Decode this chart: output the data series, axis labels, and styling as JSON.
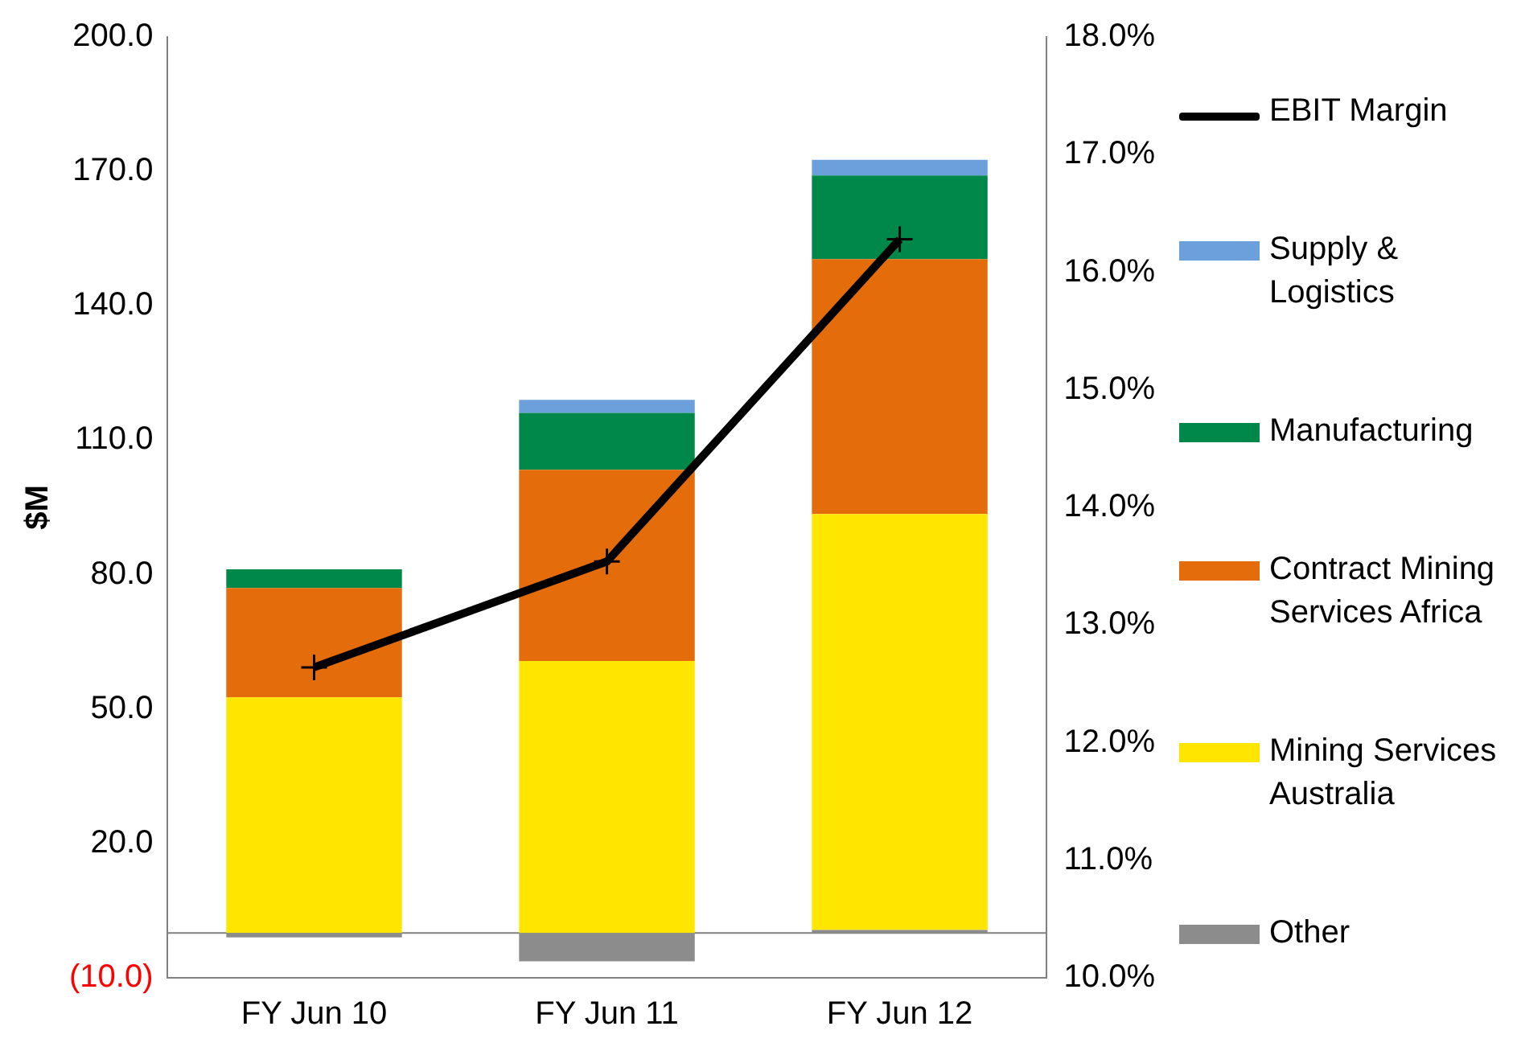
{
  "chart_data": {
    "type": "bar",
    "stacked": true,
    "categories": [
      "FY Jun 10",
      "FY Jun 11",
      "FY Jun 12"
    ],
    "ylabel": "$M",
    "ylim": [
      -10,
      200
    ],
    "yticks": [
      {
        "value": -10,
        "label": "(10.0)"
      },
      {
        "value": 20,
        "label": "20.0"
      },
      {
        "value": 50,
        "label": "50.0"
      },
      {
        "value": 80,
        "label": "80.0"
      },
      {
        "value": 110,
        "label": "110.0"
      },
      {
        "value": 140,
        "label": "140.0"
      },
      {
        "value": 170,
        "label": "170.0"
      },
      {
        "value": 200,
        "label": "200.0"
      }
    ],
    "y2lim": [
      10,
      18
    ],
    "y2ticks": [
      {
        "value": 10,
        "label": "10.0%"
      },
      {
        "value": 11,
        "label": "11.0%"
      },
      {
        "value": 12,
        "label": "12.0%"
      },
      {
        "value": 13,
        "label": "13.0%"
      },
      {
        "value": 14,
        "label": "14.0%"
      },
      {
        "value": 15,
        "label": "15.0%"
      },
      {
        "value": 16,
        "label": "16.0%"
      },
      {
        "value": 17,
        "label": "17.0%"
      },
      {
        "value": 18,
        "label": "18.0%"
      }
    ],
    "series": [
      {
        "name": "Other",
        "color": "#8c8c8c",
        "values": [
          -1,
          -6.3,
          0.7
        ]
      },
      {
        "name": "Mining Services Australia",
        "color": "#ffe600",
        "values": [
          52.6,
          60.7,
          92.8
        ]
      },
      {
        "name": "Contract Mining Services Africa",
        "color": "#e46c0a",
        "values": [
          24.4,
          42.7,
          56.9
        ]
      },
      {
        "name": "Manufacturing",
        "color": "#00884a",
        "values": [
          4.2,
          12.7,
          18.7
        ]
      },
      {
        "name": "Supply & Logistics",
        "color": "#6ca0dc",
        "values": [
          0,
          2.9,
          3.5
        ]
      },
      {
        "name": "EBIT Margin",
        "type": "line",
        "axis": "y2",
        "color": "#000000",
        "marker": "cross",
        "line_style": "solid",
        "values": [
          12.64,
          13.54,
          16.28
        ]
      }
    ],
    "ref_lines": [
      {
        "axis": "y",
        "value": 0,
        "color": "#808080"
      }
    ],
    "grid": false,
    "legend": "right"
  }
}
